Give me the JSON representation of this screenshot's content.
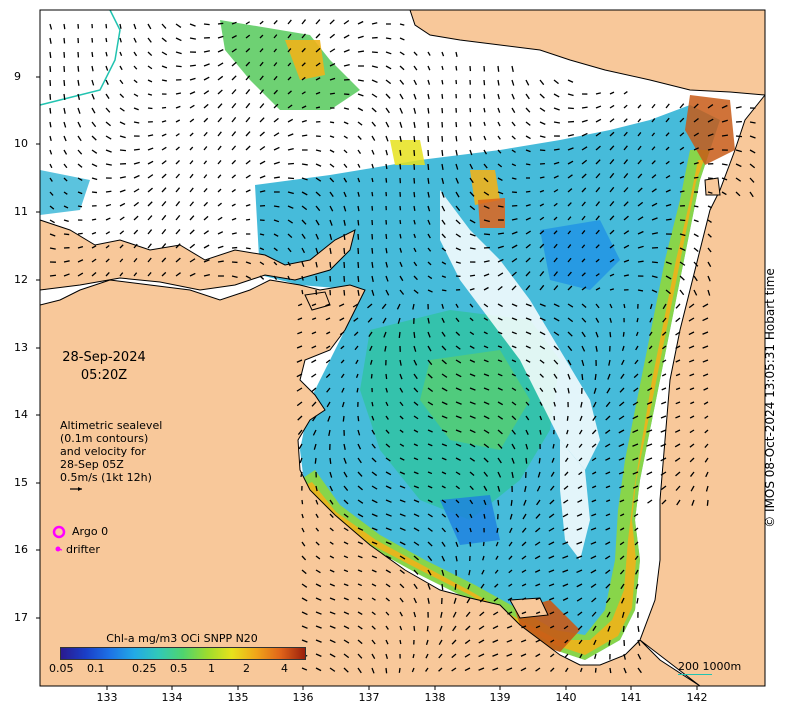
{
  "map": {
    "date": "28-Sep-2024",
    "time": "05:20Z",
    "altimetry_lines": [
      "Altimetric sealevel",
      "(0.1m contours)",
      "and velocity for",
      "28-Sep 05Z",
      "0.5m/s (1kt 12h)"
    ],
    "legend": {
      "argo_label": "Argo 0",
      "drifter_label": "drifter",
      "argo_color": "#ff00ff",
      "drifter_color": "#ff00ff"
    },
    "colorbar": {
      "title": "Chl-a mg/m3 OCi SNPP N20",
      "ticks": [
        "0.05",
        "0.1",
        "0.25",
        "0.5",
        "1",
        "2",
        "4"
      ]
    },
    "lat_ticks": [
      "9",
      "10",
      "11",
      "12",
      "13",
      "14",
      "15",
      "16",
      "17"
    ],
    "lon_ticks": [
      "133",
      "134",
      "135",
      "136",
      "137",
      "138",
      "139",
      "140",
      "141",
      "142"
    ],
    "scale_label": "200  1000m",
    "copyright": "© IMOS 08-Oct-2024 13:05:31 Hobart time",
    "colors": {
      "land": "#f8c89a",
      "ocean": "#ffffff",
      "contour": "#21c3b0"
    }
  }
}
